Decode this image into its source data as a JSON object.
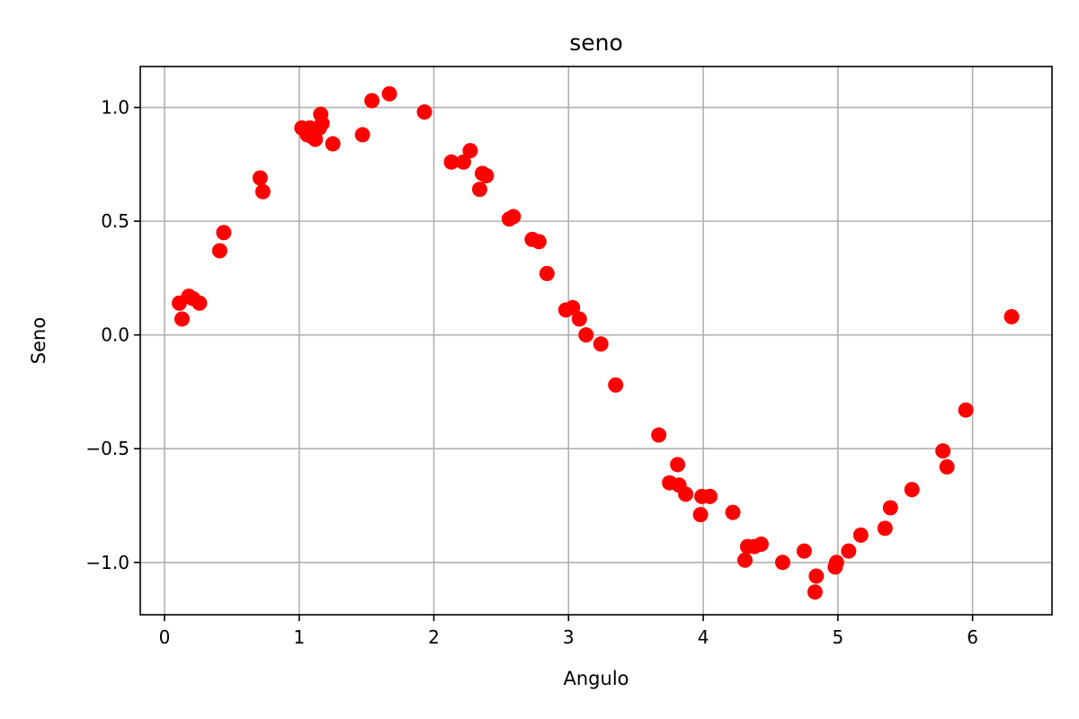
{
  "chart_data": {
    "type": "scatter",
    "title": "seno",
    "xlabel": "Angulo",
    "ylabel": "Seno",
    "xlim": [
      -0.18,
      6.59
    ],
    "ylim": [
      -1.23,
      1.18
    ],
    "xticks": [
      0,
      1,
      2,
      3,
      4,
      5,
      6
    ],
    "xtick_labels": [
      "0",
      "1",
      "2",
      "3",
      "4",
      "5",
      "6"
    ],
    "yticks": [
      1.0,
      0.5,
      0.0,
      -0.5,
      -1.0
    ],
    "ytick_labels": [
      "1.0",
      "0.5",
      "0.0",
      "−0.5",
      "−1.0"
    ],
    "grid": true,
    "marker_color": "#ff0000",
    "series": [
      {
        "x": [
          0.11,
          0.13,
          0.18,
          0.21,
          0.26,
          0.41,
          0.44,
          0.71,
          0.73,
          1.02,
          1.06,
          1.08,
          1.1,
          1.12,
          1.15,
          1.16,
          1.17,
          1.25,
          1.47,
          1.54,
          1.67,
          1.93,
          2.13,
          2.22,
          2.27,
          2.34,
          2.36,
          2.39,
          2.56,
          2.59,
          2.73,
          2.78,
          2.84,
          2.98,
          3.03,
          3.08,
          3.13,
          3.24,
          3.35,
          3.67,
          3.75,
          3.81,
          3.82,
          3.87,
          3.98,
          3.99,
          4.05,
          4.22,
          4.31,
          4.33,
          4.38,
          4.43,
          4.59,
          4.75,
          4.83,
          4.84,
          4.98,
          4.99,
          5.08,
          5.17,
          5.35,
          5.39,
          5.55,
          5.78,
          5.81,
          5.95,
          6.29
        ],
        "y": [
          0.14,
          0.07,
          0.17,
          0.16,
          0.14,
          0.37,
          0.45,
          0.69,
          0.63,
          0.91,
          0.88,
          0.91,
          0.87,
          0.86,
          0.91,
          0.97,
          0.93,
          0.84,
          0.88,
          1.03,
          1.06,
          0.98,
          0.76,
          0.76,
          0.81,
          0.64,
          0.71,
          0.7,
          0.51,
          0.52,
          0.42,
          0.41,
          0.27,
          0.11,
          0.12,
          0.07,
          0.0,
          -0.04,
          -0.22,
          -0.44,
          -0.65,
          -0.57,
          -0.66,
          -0.7,
          -0.79,
          -0.71,
          -0.71,
          -0.78,
          -0.99,
          -0.93,
          -0.93,
          -0.92,
          -1.0,
          -0.95,
          -1.13,
          -1.06,
          -1.02,
          -1.0,
          -0.95,
          -0.88,
          -0.85,
          -0.76,
          -0.68,
          -0.51,
          -0.58,
          -0.33,
          0.08
        ]
      }
    ]
  }
}
